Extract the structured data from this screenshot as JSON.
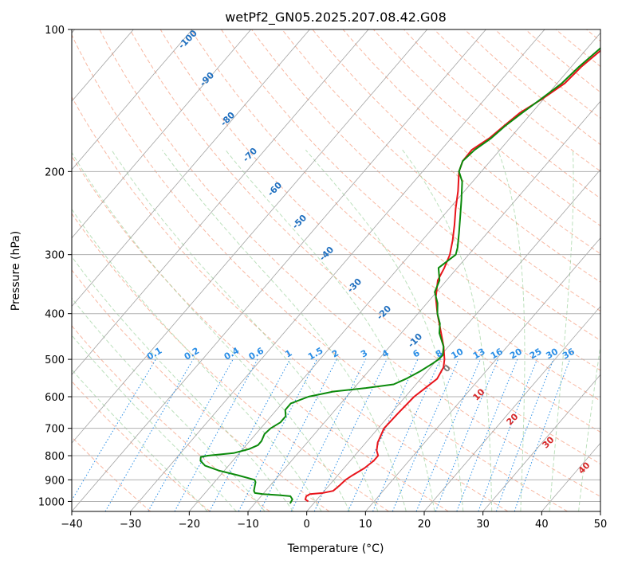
{
  "chart_data": {
    "type": "line",
    "title": "wetPf2_GN05.2025.207.08.42.G08",
    "xlabel": "Temperature (°C)",
    "ylabel": "Pressure (hPa)",
    "xlim": [
      -40,
      50
    ],
    "ylim": [
      1050,
      100
    ],
    "y_scale": "log",
    "grid": true,
    "x_ticks": [
      -40,
      -30,
      -20,
      -10,
      0,
      10,
      20,
      30,
      40,
      50
    ],
    "x_tick_labels": [
      "−40",
      "−30",
      "−20",
      "−10",
      "0",
      "10",
      "20",
      "30",
      "40",
      "50"
    ],
    "y_ticks": [
      1000,
      900,
      800,
      700,
      600,
      500,
      400,
      300,
      200,
      100
    ],
    "y_tick_labels": [
      "1000",
      "900",
      "800",
      "700",
      "600",
      "500",
      "400",
      "300",
      "200",
      "100"
    ],
    "series": [
      {
        "color": "#e8141b",
        "points": [
          [
            1000,
            -1.2
          ],
          [
            990,
            -2.0
          ],
          [
            975,
            -2.3
          ],
          [
            965,
            -2.0
          ],
          [
            960,
            0.0
          ],
          [
            950,
            1.5
          ],
          [
            925,
            1.8
          ],
          [
            900,
            2.0
          ],
          [
            880,
            2.5
          ],
          [
            850,
            3.5
          ],
          [
            820,
            4.0
          ],
          [
            800,
            4.0
          ],
          [
            780,
            3.0
          ],
          [
            750,
            2.0
          ],
          [
            700,
            1.0
          ],
          [
            650,
            1.2
          ],
          [
            600,
            1.5
          ],
          [
            580,
            2.0
          ],
          [
            550,
            2.8
          ],
          [
            520,
            2.2
          ],
          [
            500,
            1.2
          ],
          [
            470,
            -0.8
          ],
          [
            440,
            -3.2
          ],
          [
            400,
            -6.7
          ],
          [
            370,
            -9.3
          ],
          [
            340,
            -11.5
          ],
          [
            320,
            -12.2
          ],
          [
            300,
            -13.2
          ],
          [
            280,
            -14.8
          ],
          [
            260,
            -16.7
          ],
          [
            240,
            -18.9
          ],
          [
            220,
            -21.1
          ],
          [
            200,
            -23.8
          ],
          [
            190,
            -24.7
          ],
          [
            180,
            -24.8
          ],
          [
            170,
            -23.5
          ],
          [
            160,
            -22.8
          ],
          [
            150,
            -22.0
          ],
          [
            140,
            -20.2
          ],
          [
            130,
            -18.7
          ],
          [
            120,
            -18.3
          ],
          [
            110,
            -17.3
          ],
          [
            100,
            -16.8
          ]
        ]
      },
      {
        "color": "#0b8a0b",
        "points": [
          [
            1010,
            -4.0
          ],
          [
            990,
            -4.2
          ],
          [
            975,
            -5.0
          ],
          [
            970,
            -7.0
          ],
          [
            965,
            -10.0
          ],
          [
            960,
            -11.5
          ],
          [
            950,
            -12.0
          ],
          [
            930,
            -12.5
          ],
          [
            910,
            -13.0
          ],
          [
            900,
            -13.5
          ],
          [
            880,
            -17.0
          ],
          [
            860,
            -21.0
          ],
          [
            840,
            -24.0
          ],
          [
            820,
            -25.5
          ],
          [
            805,
            -26.0
          ],
          [
            800,
            -25.0
          ],
          [
            790,
            -21.0
          ],
          [
            775,
            -19.0
          ],
          [
            760,
            -18.0
          ],
          [
            745,
            -18.0
          ],
          [
            720,
            -18.5
          ],
          [
            700,
            -18.3
          ],
          [
            680,
            -17.5
          ],
          [
            660,
            -17.5
          ],
          [
            640,
            -18.5
          ],
          [
            620,
            -18.5
          ],
          [
            600,
            -16.5
          ],
          [
            585,
            -13.0
          ],
          [
            575,
            -8.0
          ],
          [
            565,
            -3.8
          ],
          [
            550,
            -2.5
          ],
          [
            530,
            -1.2
          ],
          [
            510,
            -0.2
          ],
          [
            500,
            0.2
          ],
          [
            490,
            0.3
          ],
          [
            470,
            -0.8
          ],
          [
            440,
            -3.5
          ],
          [
            420,
            -4.8
          ],
          [
            400,
            -6.7
          ],
          [
            380,
            -8.2
          ],
          [
            360,
            -10.3
          ],
          [
            340,
            -11.2
          ],
          [
            320,
            -13.2
          ],
          [
            310,
            -12.7
          ],
          [
            300,
            -12.2
          ],
          [
            290,
            -12.9
          ],
          [
            270,
            -14.8
          ],
          [
            250,
            -16.9
          ],
          [
            230,
            -19.2
          ],
          [
            210,
            -21.8
          ],
          [
            200,
            -23.8
          ],
          [
            190,
            -24.7
          ],
          [
            180,
            -24.3
          ],
          [
            170,
            -23.2
          ],
          [
            160,
            -22.6
          ],
          [
            150,
            -21.6
          ],
          [
            140,
            -20.4
          ],
          [
            130,
            -19.2
          ],
          [
            120,
            -18.7
          ],
          [
            110,
            -17.8
          ],
          [
            100,
            -16.9
          ]
        ]
      }
    ],
    "isotherm_labels": [
      "-100",
      "-90",
      "-80",
      "-70",
      "-60",
      "-50",
      "-40",
      "-30",
      "-20",
      "-10"
    ],
    "mixing_ratio_labels": [
      "0.1",
      "0.2",
      "0.4",
      "0.6",
      "1",
      "1.5",
      "2",
      "3",
      "4",
      "6",
      "8",
      "10",
      "13",
      "16",
      "20",
      "25",
      "30",
      "36"
    ],
    "moist_adiabat_labels": [
      "0",
      "10",
      "20",
      "30",
      "40"
    ]
  },
  "colors": {
    "isotherm": "#8c8c8c",
    "isobar": "#b0b0b0",
    "dry_adiabat": "#f59a7a",
    "moist_adiabat": "#8fcc8f",
    "mixing_ratio": "#2a8ee6",
    "frame": "#000000"
  }
}
